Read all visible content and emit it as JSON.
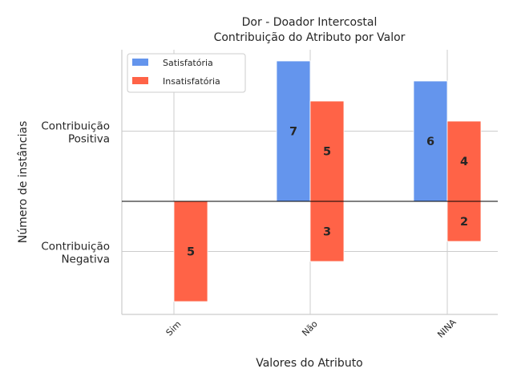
{
  "chart_data": {
    "type": "bar",
    "title_lines": [
      "Dor - Doador Intercostal",
      "Contribuição do Atributo por Valor"
    ],
    "xlabel": "Valores do Atributo",
    "ylabel": "Número de instâncias",
    "categories": [
      "Sim",
      "Não",
      "NINA"
    ],
    "yticks": [
      {
        "value": 3.5,
        "lines": [
          "Contribuição",
          "Positiva"
        ]
      },
      {
        "value": -2.5,
        "lines": [
          "Contribuição",
          "Negativa"
        ]
      }
    ],
    "ylim": [
      -5.6,
      7.6
    ],
    "grid": true,
    "legend_position": "top-left",
    "series": [
      {
        "name": "Satisfatória",
        "color": "#6495ED",
        "values": [
          0,
          7,
          6
        ],
        "labels": [
          null,
          "7",
          "6"
        ]
      },
      {
        "name": "Insatisfatória",
        "color": "#FF6347",
        "positive": [
          0,
          5,
          4
        ],
        "negative": [
          5,
          3,
          2
        ],
        "labels_positive": [
          null,
          "5",
          "4"
        ],
        "labels_negative": [
          "5",
          "3",
          "2"
        ]
      }
    ]
  }
}
